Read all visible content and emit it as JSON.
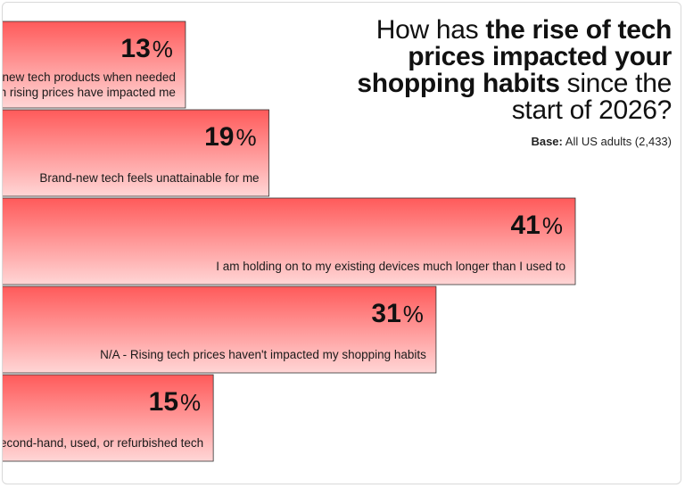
{
  "title": {
    "part1": "How has ",
    "part2": "the rise of tech prices impacted your shopping habits",
    "part3": " since the start of 2026?"
  },
  "base": {
    "label": "Base:",
    "text": " All US adults (2,433)"
  },
  "chart_data": {
    "type": "bar",
    "orientation": "horizontal",
    "title": "How has the rise of tech prices impacted your shopping habits since the start of 2026?",
    "unit": "%",
    "categories": [
      "I continue to buy new tech products when needed even though rising prices have impacted me",
      "Brand-new tech feels unattainable for me",
      "I am holding on to my existing devices much longer than I used to",
      "N/A - Rising tech prices haven't impacted my shopping habits",
      "I'm shifting toward buying second-hand, used, or refurbished tech"
    ],
    "label_lines": [
      [
        "I continue to buy new tech products when needed",
        "even though rising prices have impacted me"
      ],
      [
        "Brand-new tech feels unattainable for me"
      ],
      [
        "I am holding on to my existing devices much longer than I used to"
      ],
      [
        "N/A - Rising tech prices haven't impacted my shopping habits"
      ],
      [
        "I'm shifting toward buying second-hand, used, or refurbished tech"
      ]
    ],
    "values": [
      13,
      19,
      41,
      31,
      15
    ],
    "value_labels": [
      "13",
      "19",
      "41",
      "31",
      "15"
    ],
    "colors": {
      "bar_top": "#ff5a5a",
      "bar_bottom": "#ffd6d6",
      "bar_border": "#333333"
    }
  }
}
